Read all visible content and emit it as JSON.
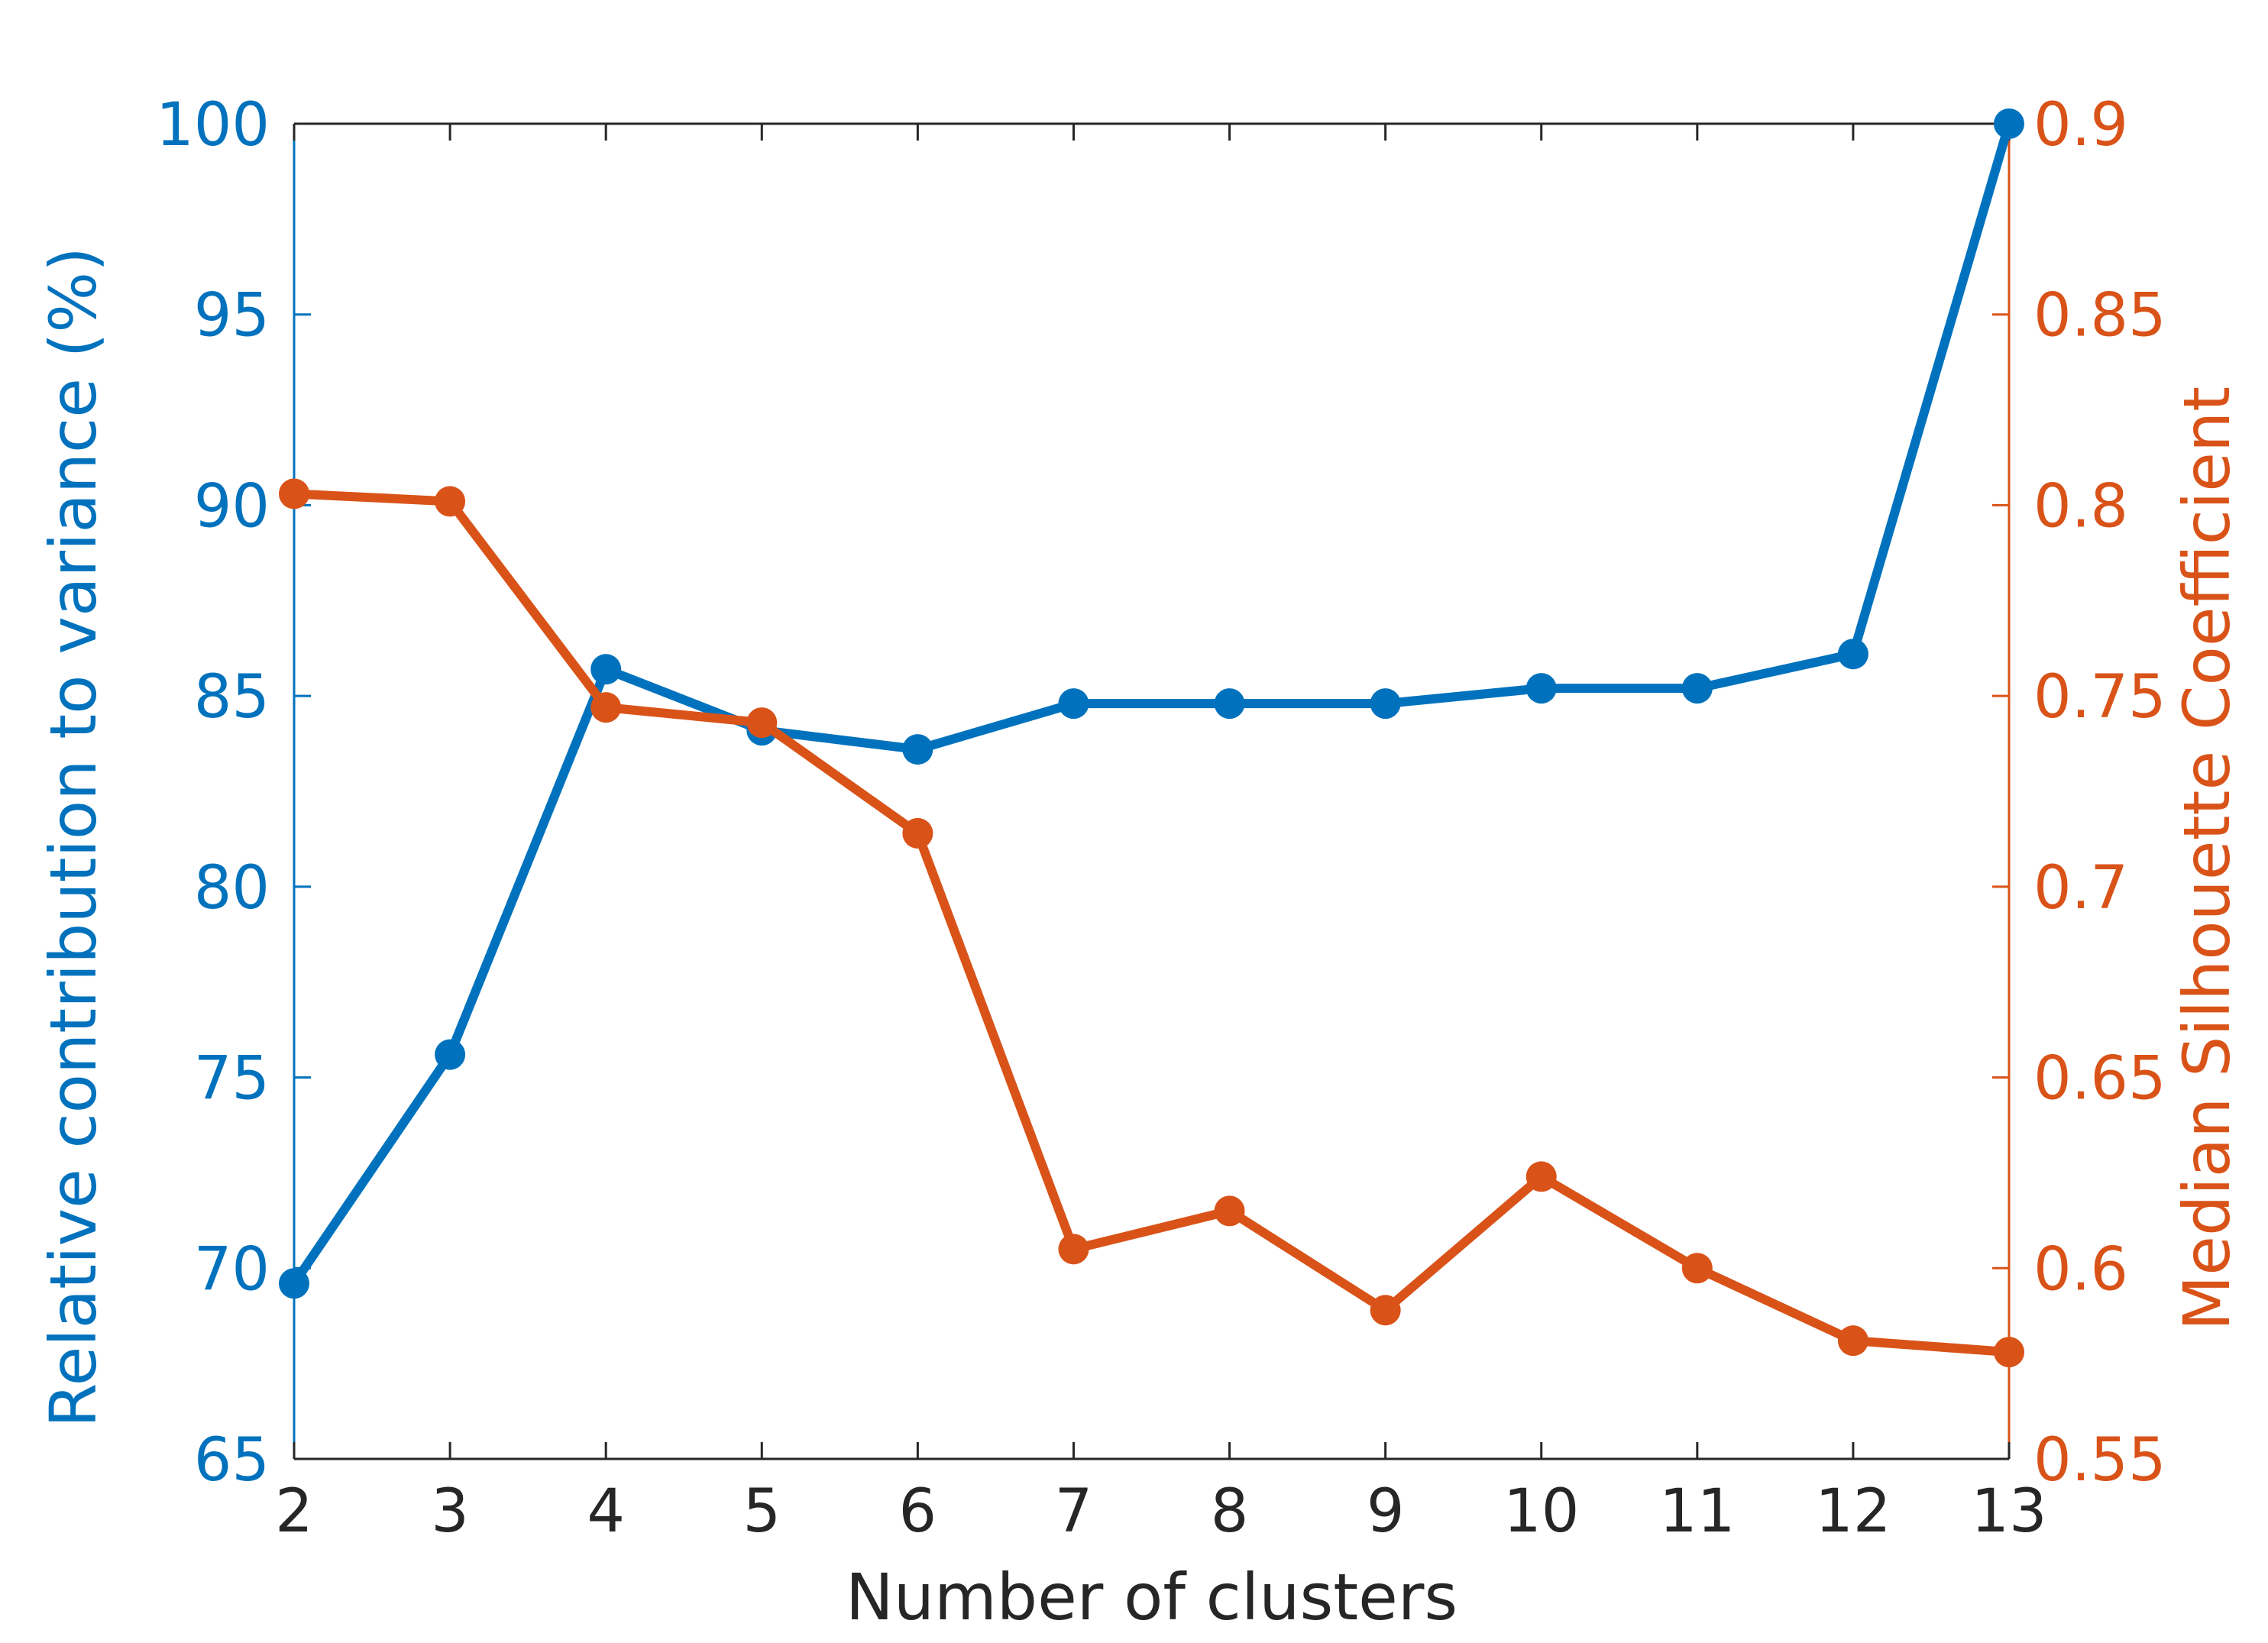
{
  "chart_data": {
    "type": "line",
    "xlabel": "Number of clusters",
    "ylabel_left": "Relative contribution to variance (%)",
    "ylabel_right": "Median Silhouette Coefficient",
    "x": [
      2,
      3,
      4,
      5,
      6,
      7,
      8,
      9,
      10,
      11,
      12,
      13
    ],
    "xlim": [
      2,
      13
    ],
    "x_ticks": [
      "2",
      "3",
      "4",
      "5",
      "6",
      "7",
      "8",
      "9",
      "10",
      "11",
      "12",
      "13"
    ],
    "ylim_left": [
      65,
      100
    ],
    "y_ticks_left": [
      "65",
      "70",
      "75",
      "80",
      "85",
      "90",
      "95",
      "100"
    ],
    "ylim_right": [
      0.55,
      0.9
    ],
    "y_ticks_right": [
      "0.55",
      "0.6",
      "0.65",
      "0.7",
      "0.75",
      "0.8",
      "0.85",
      "0.9"
    ],
    "grid": false,
    "colors": {
      "left": "#0072BD",
      "right": "#D95319",
      "axis": "#262626"
    },
    "series": [
      {
        "axis": "left",
        "values": [
          69.6,
          75.6,
          85.7,
          84.1,
          83.6,
          84.8,
          84.8,
          84.8,
          85.2,
          85.2,
          86.1,
          100.0
        ]
      },
      {
        "axis": "right",
        "values": [
          0.803,
          0.801,
          0.747,
          0.743,
          0.714,
          0.605,
          0.615,
          0.589,
          0.624,
          0.6,
          0.581,
          0.578
        ]
      }
    ]
  }
}
